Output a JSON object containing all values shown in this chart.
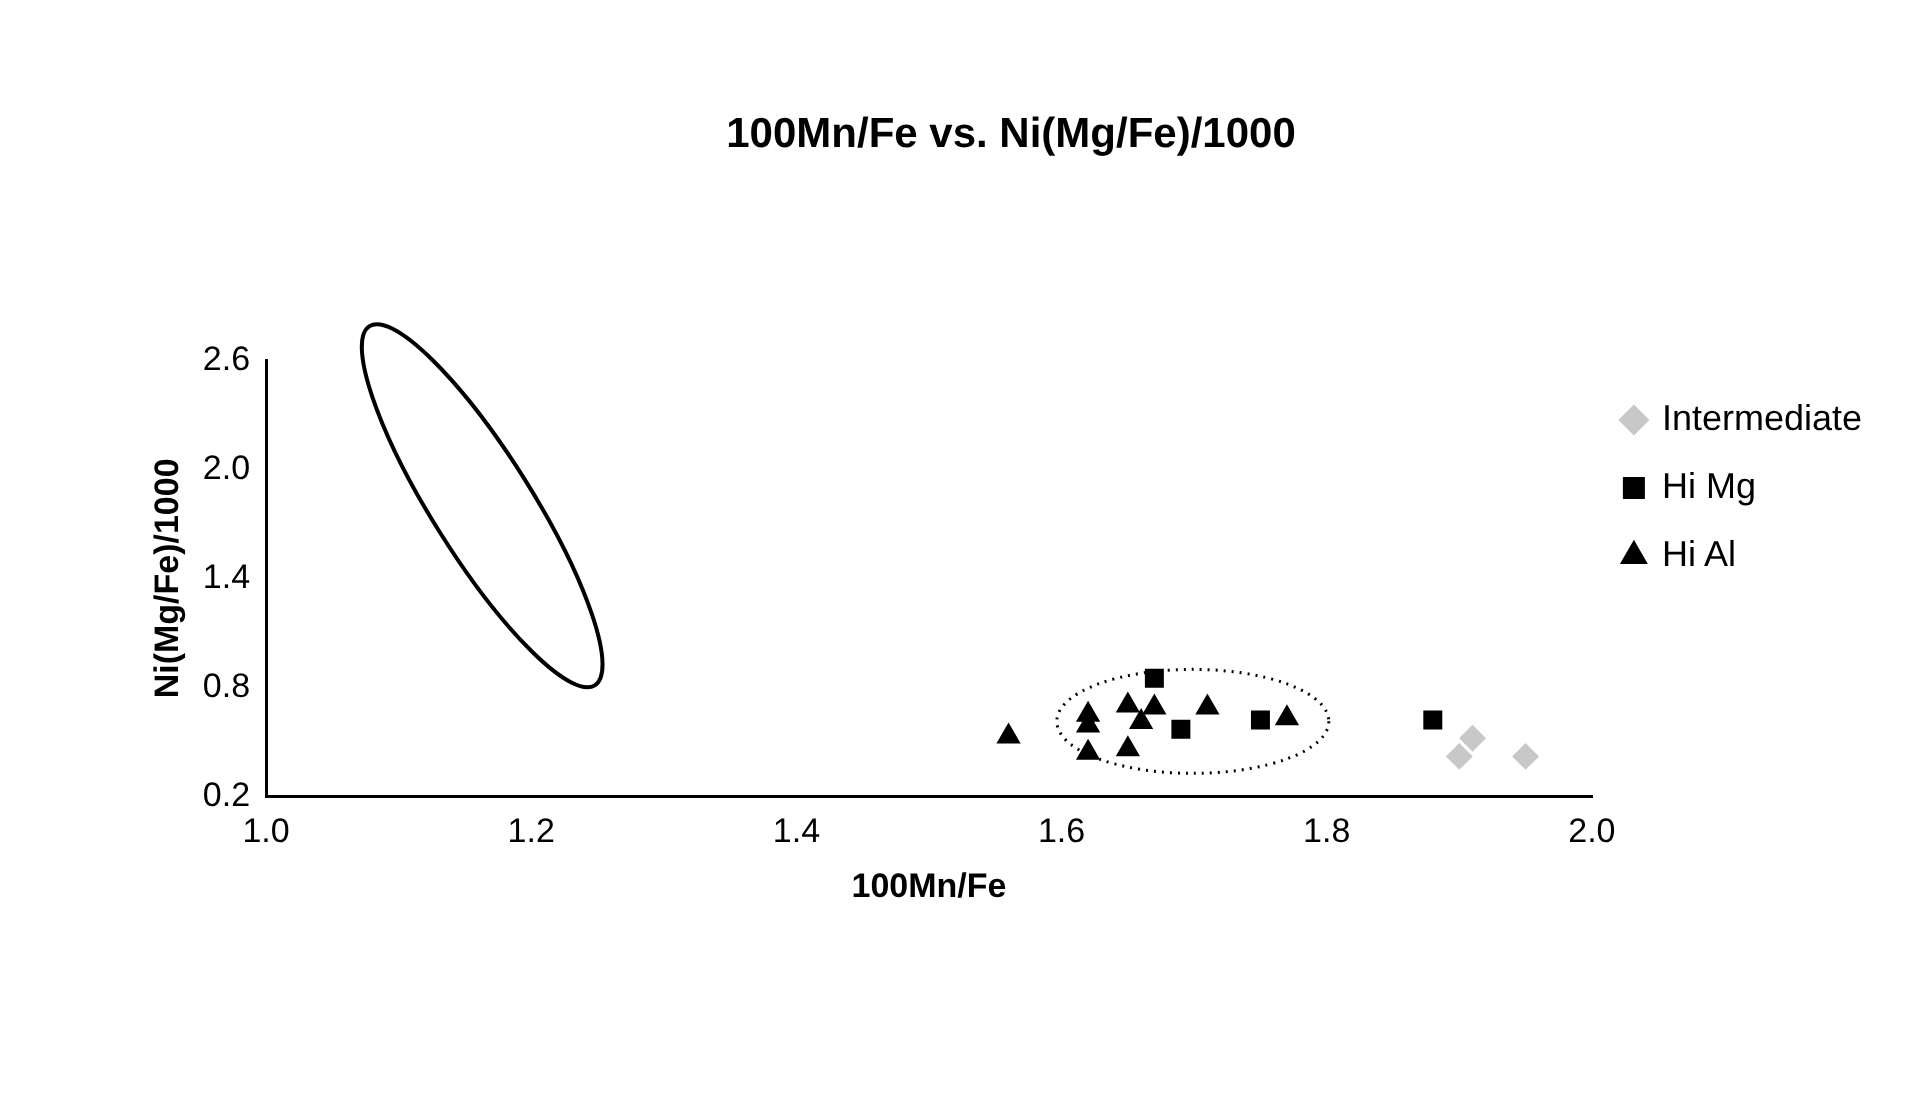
{
  "chart_data": {
    "type": "scatter",
    "title": "100Mn/Fe vs. Ni(Mg/Fe)/1000",
    "xlabel": "100Mn/Fe",
    "ylabel": "Ni(Mg/Fe)/1000",
    "xlim": [
      1.0,
      2.0
    ],
    "xticks": [
      {
        "value": 1.0,
        "label": "1.0"
      },
      1.2,
      1.4,
      1.6,
      1.8,
      {
        "value": 2.0,
        "label": "2.0"
      }
    ],
    "ylim": [
      0.2,
      2.6
    ],
    "yticks": [
      0.2,
      0.8,
      1.4,
      {
        "value": 2.0,
        "label": "2.0"
      },
      2.6
    ],
    "grid": false,
    "legend": "right",
    "series": [
      {
        "name": "Intermediate",
        "color": "#c8c8c8",
        "marker": "diamond",
        "x": [
          1.9,
          1.95,
          1.91
        ],
        "values": [
          0.42,
          0.42,
          0.52
        ]
      },
      {
        "name": "Hi Mg",
        "color": "#000000",
        "marker": "square",
        "x": [
          1.67,
          1.69,
          1.75,
          1.88
        ],
        "values": [
          0.85,
          0.57,
          0.62,
          0.62
        ]
      },
      {
        "name": "Hi Al",
        "color": "#000000",
        "marker": "triangle",
        "x": [
          1.56,
          1.62,
          1.62,
          1.62,
          1.65,
          1.66,
          1.67,
          1.65,
          1.71,
          1.77
        ],
        "values": [
          0.53,
          0.65,
          0.59,
          0.44,
          0.7,
          0.61,
          0.69,
          0.46,
          0.69,
          0.63
        ]
      }
    ]
  }
}
